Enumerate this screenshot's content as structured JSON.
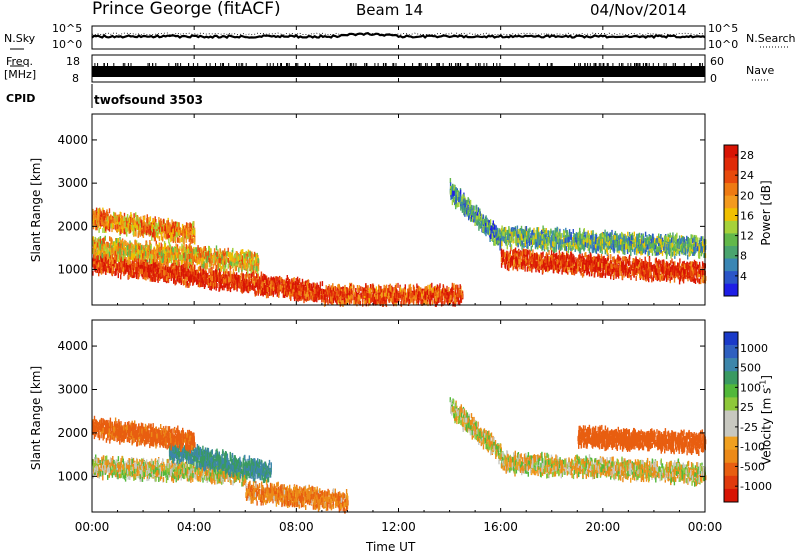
{
  "header": {
    "station": "Prince George (fitACF)",
    "beam": "Beam 14",
    "date": "04/Nov/2014"
  },
  "noise_panel": {
    "left_label": "N.Sky",
    "right_label": "N.Search",
    "left_ticks": [
      "10^5",
      "10^0"
    ],
    "right_ticks": [
      "10^5",
      "10^0"
    ]
  },
  "freq_panel": {
    "left_label": "Freq.",
    "left_unit": "[MHz]",
    "right_label": "Nave",
    "left_ticks": [
      "18",
      "8"
    ],
    "right_ticks": [
      "60",
      "0"
    ]
  },
  "cpid_panel": {
    "label": "CPID",
    "value": "twofsound 3503"
  },
  "colors": {
    "background": "#ffffff",
    "axes": "#000000",
    "power_scale": [
      "#1e1ee6",
      "#2a55c8",
      "#3a86b4",
      "#4aa46e",
      "#62b84a",
      "#a6d23a",
      "#f0c000",
      "#f39a1e",
      "#ee7a12",
      "#e84a0c",
      "#e02a08",
      "#d81404"
    ],
    "velocity_scale": [
      "#1a3ac8",
      "#2f60c0",
      "#3d86aa",
      "#3a9a62",
      "#52b83a",
      "#8ec83a",
      "#c8c8c0",
      "#c8c8c0",
      "#f0a020",
      "#ec8a18",
      "#e85e10",
      "#e03a0c",
      "#d81404"
    ]
  },
  "chart_data": [
    {
      "type": "heatmap",
      "panel": "power",
      "ylabel": "Slant Range [km]",
      "yticks": [
        1000,
        2000,
        3000,
        4000
      ],
      "ylim": [
        180,
        4600
      ],
      "x": [
        "00:00",
        "04:00",
        "08:00",
        "12:00",
        "16:00",
        "20:00",
        "00:00"
      ],
      "xlabel": "Time UT",
      "colorbar": {
        "label": "Power [dB]",
        "ticks": [
          4,
          8,
          12,
          16,
          20,
          24,
          28
        ],
        "range": [
          0,
          30
        ]
      },
      "scatter_bands": [
        {
          "t0": 0.0,
          "t1": 9.0,
          "r_center0": 1150,
          "r_center1": 450,
          "value": 26
        },
        {
          "t0": 0.0,
          "t1": 6.5,
          "r_center0": 1500,
          "r_center1": 1150,
          "value": 18
        },
        {
          "t0": 0.0,
          "t1": 4.0,
          "r_center0": 2150,
          "r_center1": 1800,
          "value": 20
        },
        {
          "t0": 9.0,
          "t1": 14.5,
          "r_center0": 380,
          "r_center1": 380,
          "value": 24
        },
        {
          "t0": 14.0,
          "t1": 16.0,
          "r_center0": 2800,
          "r_center1": 1650,
          "value": 8
        },
        {
          "t0": 16.0,
          "t1": 24.0,
          "r_center0": 1250,
          "r_center1": 900,
          "value": 26
        },
        {
          "t0": 16.0,
          "t1": 24.0,
          "r_center0": 1750,
          "r_center1": 1500,
          "value": 10
        }
      ]
    },
    {
      "type": "heatmap",
      "panel": "velocity",
      "ylabel": "Slant Range [km]",
      "yticks": [
        1000,
        2000,
        3000,
        4000
      ],
      "ylim": [
        180,
        4600
      ],
      "x": [
        "00:00",
        "04:00",
        "08:00",
        "12:00",
        "16:00",
        "20:00",
        "00:00"
      ],
      "xlabel": "Time UT",
      "colorbar": {
        "label": "Velocity [m s^-1]",
        "ticks": [
          "1000",
          "500",
          "100",
          "25",
          "-25",
          "-100",
          "-500",
          "-1000"
        ]
      },
      "scatter_bands": [
        {
          "t0": 0.0,
          "t1": 6.0,
          "r_center0": 1200,
          "r_center1": 1050,
          "value": 0
        },
        {
          "t0": 3.0,
          "t1": 7.0,
          "r_center0": 1600,
          "r_center1": 1050,
          "value": 300
        },
        {
          "t0": 0.0,
          "t1": 4.0,
          "r_center0": 2100,
          "r_center1": 1800,
          "value": -150
        },
        {
          "t0": 6.0,
          "t1": 10.0,
          "r_center0": 650,
          "r_center1": 400,
          "value": -80
        },
        {
          "t0": 14.0,
          "t1": 16.0,
          "r_center0": 2600,
          "r_center1": 1500,
          "value": 0
        },
        {
          "t0": 16.0,
          "t1": 24.0,
          "r_center0": 1300,
          "r_center1": 1050,
          "value": 0
        },
        {
          "t0": 19.0,
          "t1": 24.0,
          "r_center0": 1900,
          "r_center1": 1750,
          "value": -200
        }
      ]
    }
  ]
}
